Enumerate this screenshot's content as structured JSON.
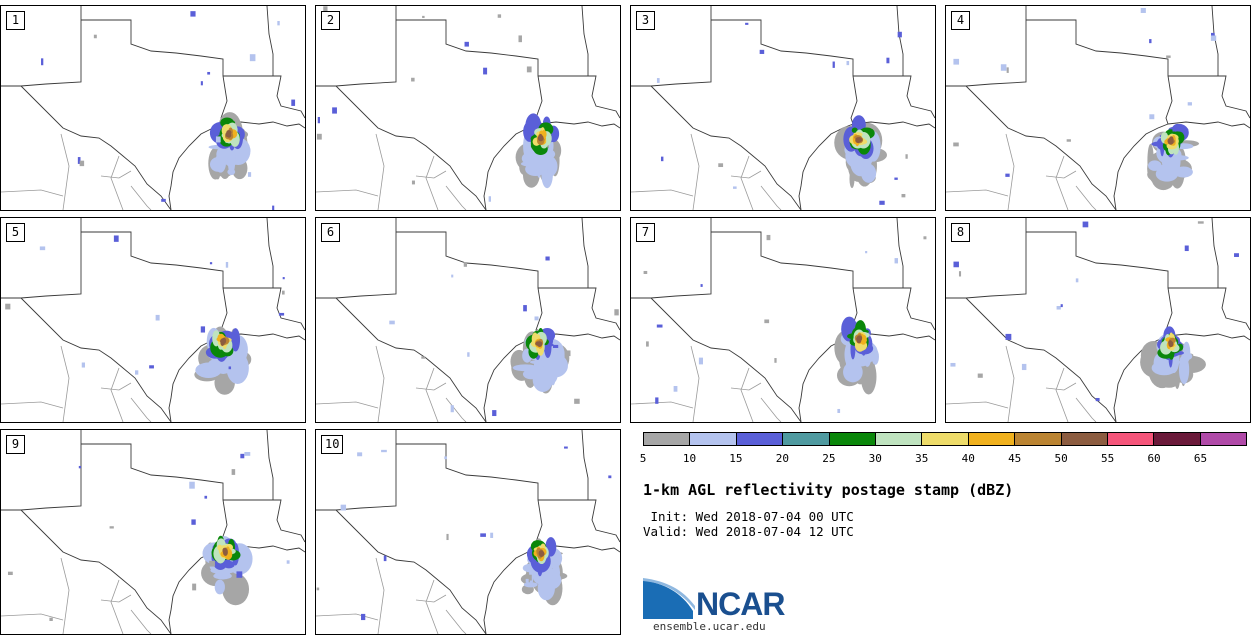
{
  "panels": [
    {
      "label": "1"
    },
    {
      "label": "2"
    },
    {
      "label": "3"
    },
    {
      "label": "4"
    },
    {
      "label": "5"
    },
    {
      "label": "6"
    },
    {
      "label": "7"
    },
    {
      "label": "8"
    },
    {
      "label": "9"
    },
    {
      "label": "10"
    }
  ],
  "colorbar": {
    "colors": [
      "#a6a6a6",
      "#b4c3ee",
      "#5a5fd8",
      "#4f9aa0",
      "#0a870a",
      "#bfe3bf",
      "#eedc6a",
      "#f0b11e",
      "#bb8432",
      "#8c5c40",
      "#f5557a",
      "#6b1a3a",
      "#b04aa8"
    ],
    "ticks": [
      "5",
      "10",
      "15",
      "20",
      "25",
      "30",
      "35",
      "40",
      "45",
      "50",
      "55",
      "60",
      "65"
    ]
  },
  "title": "1-km AGL reflectivity postage stamp (dBZ)",
  "init_line": " Init: Wed 2018-07-04 00 UTC",
  "valid_line": "Valid: Wed 2018-07-04 12 UTC",
  "logo_text": "NCAR",
  "site": "ensemble.ucar.edu"
}
